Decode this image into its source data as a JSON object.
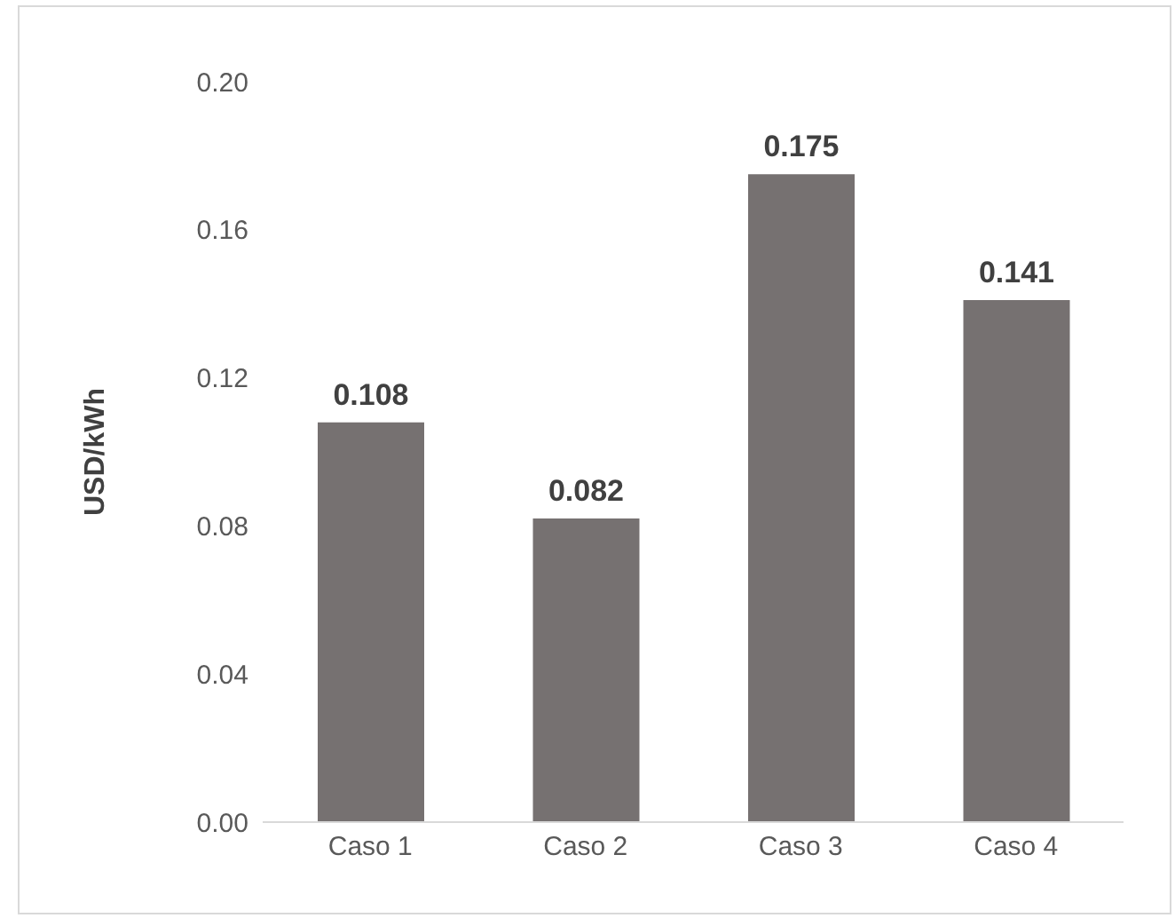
{
  "chart_data": {
    "type": "bar",
    "ylabel": "USD/kWh",
    "categories": [
      "Caso 1",
      "Caso 2",
      "Caso 3",
      "Caso 4"
    ],
    "values": [
      0.108,
      0.082,
      0.175,
      0.141
    ],
    "color": "#767171",
    "ylim": [
      0,
      0.2
    ],
    "yticks": [
      {
        "value": 0,
        "label": "0.00"
      },
      {
        "value": 0.04,
        "label": "0.04"
      },
      {
        "value": 0.08,
        "label": "0.08"
      },
      {
        "value": 0.12,
        "label": "0.12"
      },
      {
        "value": 0.16,
        "label": "0.16"
      },
      {
        "value": 0.2,
        "label": "0.20"
      }
    ],
    "data_labels": true,
    "grid": false,
    "legend": false
  }
}
